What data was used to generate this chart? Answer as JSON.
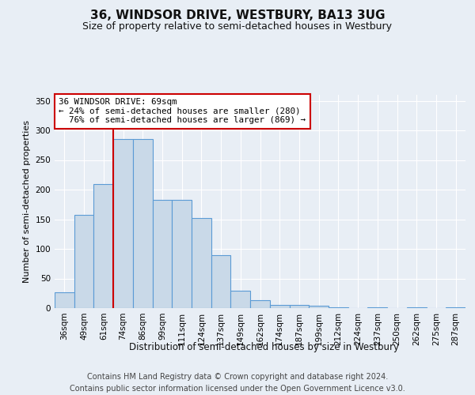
{
  "title": "36, WINDSOR DRIVE, WESTBURY, BA13 3UG",
  "subtitle": "Size of property relative to semi-detached houses in Westbury",
  "xlabel": "Distribution of semi-detached houses by size in Westbury",
  "ylabel": "Number of semi-detached properties",
  "footer": "Contains HM Land Registry data © Crown copyright and database right 2024.\nContains public sector information licensed under the Open Government Licence v3.0.",
  "categories": [
    "36sqm",
    "49sqm",
    "61sqm",
    "74sqm",
    "86sqm",
    "99sqm",
    "111sqm",
    "124sqm",
    "137sqm",
    "149sqm",
    "162sqm",
    "174sqm",
    "187sqm",
    "199sqm",
    "212sqm",
    "224sqm",
    "237sqm",
    "250sqm",
    "262sqm",
    "275sqm",
    "287sqm"
  ],
  "values": [
    27,
    157,
    210,
    285,
    285,
    183,
    183,
    152,
    90,
    29,
    13,
    5,
    5,
    4,
    2,
    0,
    2,
    0,
    2,
    0,
    1
  ],
  "bar_color": "#c9d9e8",
  "bar_edge_color": "#5b9bd5",
  "red_line_x": 2.5,
  "property_size": "69sqm",
  "property_name": "36 WINDSOR DRIVE",
  "pct_smaller": 24,
  "n_smaller": 280,
  "pct_larger": 76,
  "n_larger": 869,
  "ylim": [
    0,
    360
  ],
  "yticks": [
    0,
    50,
    100,
    150,
    200,
    250,
    300,
    350
  ],
  "background_color": "#e8eef5",
  "plot_bg_color": "#e8eef5",
  "grid_color": "#ffffff",
  "annotation_box_color": "#ffffff",
  "annotation_box_edge": "#cc0000",
  "red_line_color": "#cc0000",
  "title_fontsize": 11,
  "subtitle_fontsize": 9,
  "tick_fontsize": 7.5,
  "ylabel_fontsize": 8,
  "xlabel_fontsize": 8.5,
  "footer_fontsize": 7
}
